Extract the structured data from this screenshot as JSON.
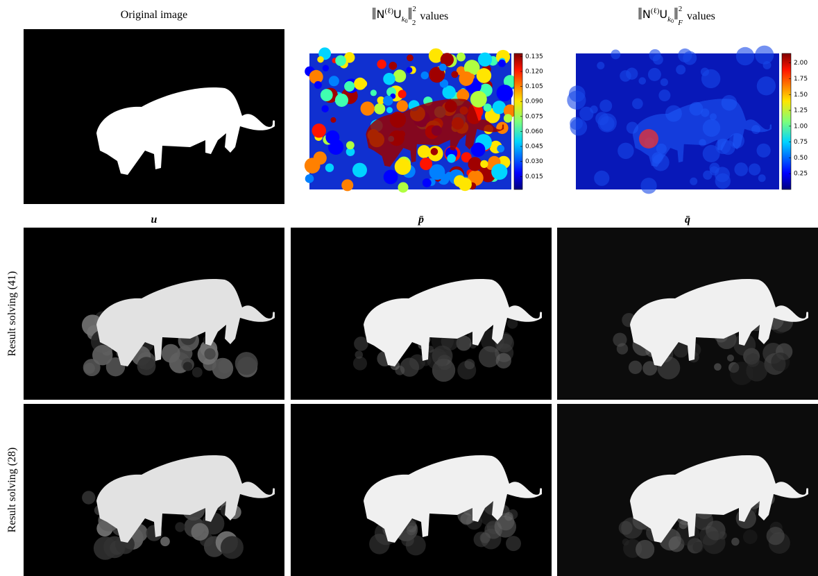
{
  "header": {
    "original_title": "Original image",
    "norm_titles": [
      {
        "bar": "‖",
        "base": "N",
        "sup": "(ℓ)",
        "op": "U",
        "sub": "k",
        "subsub": "0",
        "norm_sup": "2",
        "norm_sub": "2",
        "suffix": "values"
      },
      {
        "bar": "‖",
        "base": "N",
        "sup": "(ℓ)",
        "op": "U",
        "sub": "k",
        "subsub": "0",
        "norm_sup": "2",
        "norm_sub": "F",
        "suffix": "values"
      }
    ]
  },
  "colorbars": [
    {
      "lim": [
        0.002,
        0.138
      ],
      "ticks": [
        {
          "value": 0.135,
          "label": "0.135"
        },
        {
          "value": 0.12,
          "label": "0.120"
        },
        {
          "value": 0.105,
          "label": "0.105"
        },
        {
          "value": 0.09,
          "label": "0.090"
        },
        {
          "value": 0.075,
          "label": "0.075"
        },
        {
          "value": 0.06,
          "label": "0.060"
        },
        {
          "value": 0.045,
          "label": "0.045"
        },
        {
          "value": 0.03,
          "label": "0.030"
        },
        {
          "value": 0.015,
          "label": "0.015"
        }
      ]
    },
    {
      "lim": [
        0,
        2.15
      ],
      "ticks": [
        {
          "value": 2,
          "label": "2.00"
        },
        {
          "value": 1.75,
          "label": "1.75"
        },
        {
          "value": 1.5,
          "label": "1.50"
        },
        {
          "value": 1.25,
          "label": "1.25"
        },
        {
          "value": 1,
          "label": "1.00"
        },
        {
          "value": 0.75,
          "label": "0.75"
        },
        {
          "value": 0.5,
          "label": "0.50"
        },
        {
          "value": 0.25,
          "label": "0.25"
        }
      ]
    }
  ],
  "columns": [
    "u",
    "p̄",
    "q̄"
  ],
  "rows": [
    "Result solving (41)",
    "Result solving (28)"
  ]
}
